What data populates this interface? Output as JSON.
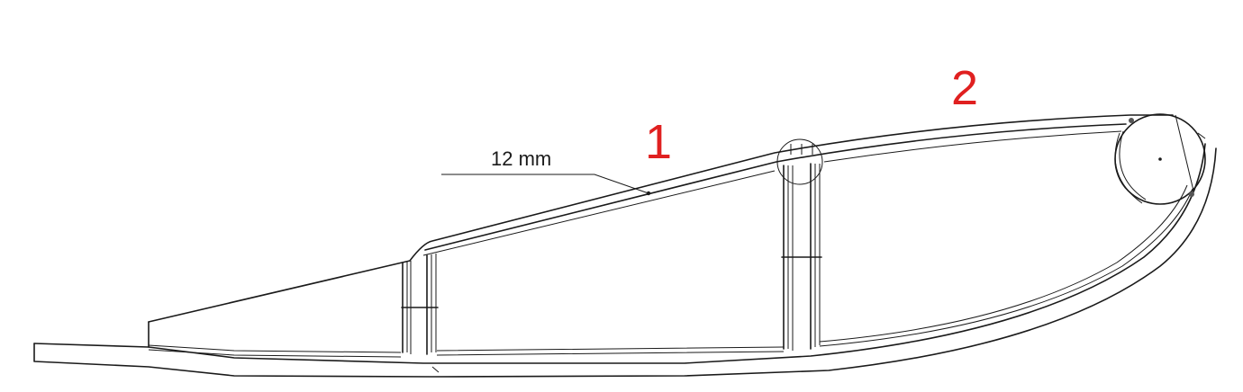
{
  "dimension_label": "12 mm",
  "markers": [
    {
      "id": "1",
      "text": "1"
    },
    {
      "id": "2",
      "text": "2"
    }
  ],
  "marker_color": "#e02020",
  "line_color": "#1a1a1a"
}
